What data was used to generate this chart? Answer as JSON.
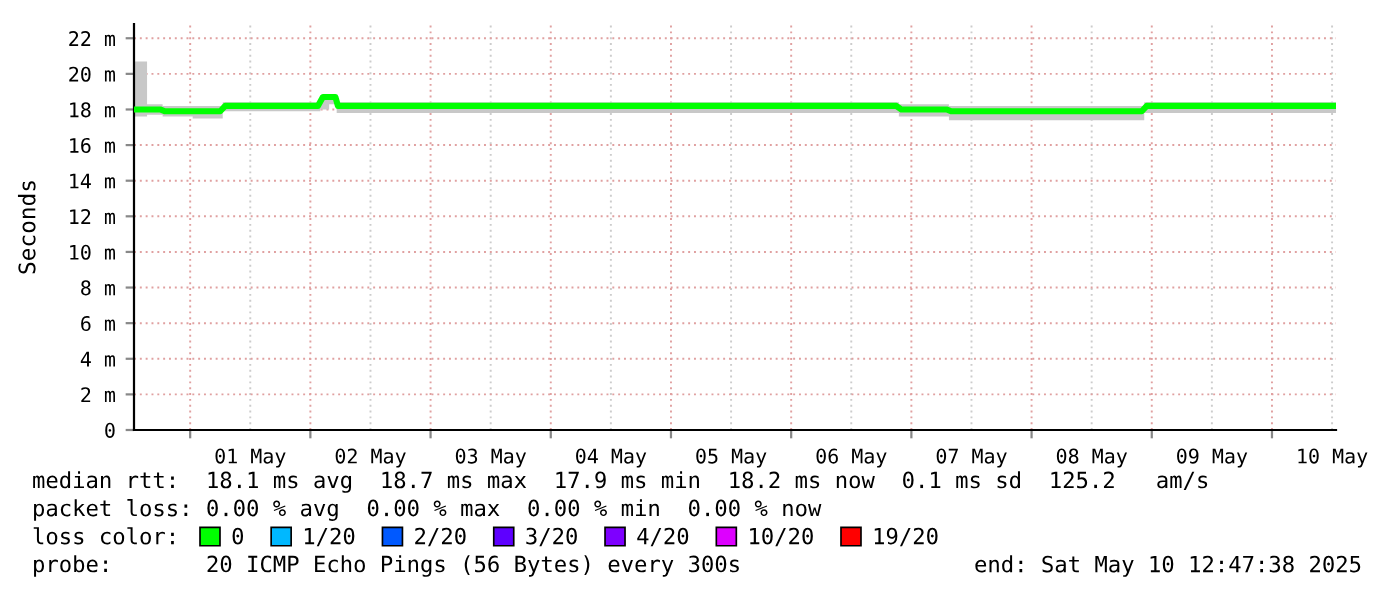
{
  "chart_data": {
    "type": "line",
    "ylabel": "Seconds",
    "x": [
      "2025-04-30T12:47",
      "2025-04-30T18:00",
      "2025-04-30T19:00",
      "2025-05-01T06:00",
      "2025-05-01T07:00",
      "2025-05-02T01:30",
      "2025-05-02T02:30",
      "2025-05-02T05:00",
      "2025-05-02T05:30",
      "2025-05-06T21:00",
      "2025-05-06T22:00",
      "2025-05-07T07:00",
      "2025-05-07T08:00",
      "2025-05-08T22:00",
      "2025-05-08T23:00",
      "2025-05-10T12:47"
    ],
    "series": [
      {
        "name": "0",
        "color": "#00ff00",
        "values": [
          18.0,
          18.0,
          17.9,
          17.9,
          18.2,
          18.2,
          18.7,
          18.7,
          18.2,
          18.2,
          18.0,
          18.0,
          17.9,
          17.9,
          18.2,
          18.2
        ],
        "lower": [
          17.6,
          17.7,
          17.6,
          17.5,
          17.9,
          17.9,
          18.0,
          18.3,
          17.8,
          17.8,
          17.6,
          17.6,
          17.4,
          17.4,
          17.8,
          17.8
        ],
        "upper": [
          20.7,
          18.3,
          18.2,
          18.2,
          18.4,
          18.4,
          18.8,
          18.8,
          18.4,
          18.4,
          18.3,
          18.3,
          18.2,
          18.2,
          18.4,
          18.4
        ]
      },
      {
        "name": "1/20",
        "color": "#00b8ff",
        "values": [
          null,
          null,
          null,
          null,
          null,
          null,
          null,
          null,
          null,
          null,
          null,
          null,
          null,
          null,
          null,
          null
        ]
      },
      {
        "name": "2/20",
        "color": "#0059ff",
        "values": [
          null,
          null,
          null,
          null,
          null,
          null,
          null,
          null,
          null,
          null,
          null,
          null,
          null,
          null,
          null,
          null
        ]
      },
      {
        "name": "3/20",
        "color": "#5e00ff",
        "values": [
          null,
          null,
          null,
          null,
          null,
          null,
          null,
          null,
          null,
          null,
          null,
          null,
          null,
          null,
          null,
          null
        ]
      },
      {
        "name": "4/20",
        "color": "#7e00ff",
        "values": [
          null,
          null,
          null,
          null,
          null,
          null,
          null,
          null,
          null,
          null,
          null,
          null,
          null,
          null,
          null,
          null
        ]
      },
      {
        "name": "10/20",
        "color": "#dd00ff",
        "values": [
          null,
          null,
          null,
          null,
          null,
          null,
          null,
          null,
          null,
          null,
          null,
          null,
          null,
          null,
          null,
          null
        ]
      },
      {
        "name": "19/20",
        "color": "#ff0000",
        "values": [
          null,
          null,
          null,
          null,
          null,
          null,
          null,
          null,
          null,
          null,
          null,
          null,
          null,
          null,
          null,
          null
        ]
      }
    ],
    "xlim": [
      "2025-04-30T12:47",
      "2025-05-10T12:47"
    ],
    "xticks": [
      {
        "value": "2025-05-01T00:00",
        "label": null
      },
      {
        "value": "2025-05-01T12:00",
        "label": "01 May"
      },
      {
        "value": "2025-05-02T00:00",
        "label": null
      },
      {
        "value": "2025-05-02T12:00",
        "label": "02 May"
      },
      {
        "value": "2025-05-03T00:00",
        "label": null
      },
      {
        "value": "2025-05-03T12:00",
        "label": "03 May"
      },
      {
        "value": "2025-05-04T00:00",
        "label": null
      },
      {
        "value": "2025-05-04T12:00",
        "label": "04 May"
      },
      {
        "value": "2025-05-05T00:00",
        "label": null
      },
      {
        "value": "2025-05-05T12:00",
        "label": "05 May"
      },
      {
        "value": "2025-05-06T00:00",
        "label": null
      },
      {
        "value": "2025-05-06T12:00",
        "label": "06 May"
      },
      {
        "value": "2025-05-07T00:00",
        "label": null
      },
      {
        "value": "2025-05-07T12:00",
        "label": "07 May"
      },
      {
        "value": "2025-05-08T00:00",
        "label": null
      },
      {
        "value": "2025-05-08T12:00",
        "label": "08 May"
      },
      {
        "value": "2025-05-09T00:00",
        "label": null
      },
      {
        "value": "2025-05-09T12:00",
        "label": "09 May"
      },
      {
        "value": "2025-05-10T00:00",
        "label": null
      },
      {
        "value": "2025-05-10T12:00",
        "label": "10 May"
      }
    ],
    "ylim": [
      0,
      22.8
    ],
    "yticks": [
      0,
      {
        "value": 2,
        "label": "2 m"
      },
      {
        "value": 4,
        "label": "4 m"
      },
      {
        "value": 6,
        "label": "6 m"
      },
      {
        "value": 8,
        "label": "8 m"
      },
      {
        "value": 10,
        "label": "10 m"
      },
      {
        "value": 12,
        "label": "12 m"
      },
      {
        "value": 14,
        "label": "14 m"
      },
      {
        "value": 16,
        "label": "16 m"
      },
      {
        "value": 18,
        "label": "18 m"
      },
      {
        "value": 20,
        "label": "20 m"
      },
      {
        "value": 22,
        "label": "22 m"
      }
    ],
    "grid": true,
    "legend": "bottom",
    "line_style": "solid",
    "legend_title": "loss color:",
    "annotations": [
      "median rtt:  18.1 ms avg  18.7 ms max  17.9 ms min  18.2 ms now  0.1 ms sd  125.2   am/s",
      "packet loss: 0.00 % avg  0.00 % max  0.00 % min  0.00 % now",
      "probe:       20 ICMP Echo Pings (56 Bytes) every 300s",
      "end: Sat May 10 12:47:38 2025"
    ]
  }
}
